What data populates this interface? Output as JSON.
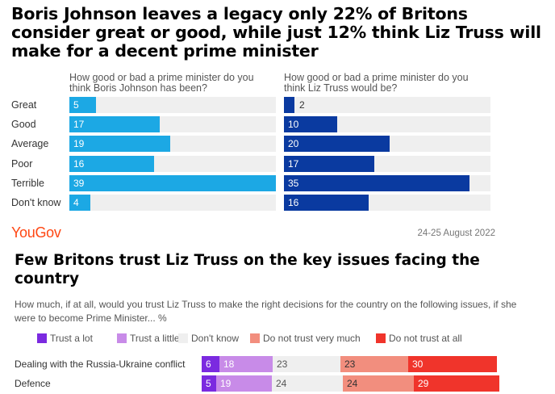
{
  "chart1": {
    "title": "Boris Johnson leaves a legacy only 22% of Britons consider great or good, while just 12% think Liz Truss will make for a decent prime minister",
    "chart_data": [
      {
        "type": "bar",
        "orientation": "horizontal",
        "question": "How good or bad a prime minister do you think Boris Johnson has been?",
        "categories": [
          "Great",
          "Good",
          "Average",
          "Poor",
          "Terrible",
          "Don't know"
        ],
        "values": [
          5,
          17,
          19,
          16,
          39,
          4
        ],
        "color": "#1ca8e4"
      },
      {
        "type": "bar",
        "orientation": "horizontal",
        "question": "How good or bad a prime minister do you think Liz Truss would be?",
        "categories": [
          "Great",
          "Good",
          "Average",
          "Poor",
          "Terrible",
          "Don't know"
        ],
        "values": [
          2,
          10,
          20,
          17,
          35,
          16
        ],
        "color": "#0a3aa0"
      }
    ],
    "brand": "YouGov",
    "date": "24-25 August 2022"
  },
  "chart2": {
    "title": "Few Britons trust Liz Truss on the key issues facing the country",
    "question": "How much, if at all, would you trust Liz Truss to make the right decisions for the country on the following issues, if she were to become Prime Minister... %",
    "chart_data": {
      "type": "bar",
      "orientation": "horizontal",
      "stacked": true,
      "categories": [
        "Dealing with the Russia-Ukraine conflict",
        "Defence"
      ],
      "series": [
        {
          "name": "Trust a lot",
          "values": [
            6,
            5
          ],
          "color": "#7b2ae0"
        },
        {
          "name": "Trust a little",
          "values": [
            18,
            19
          ],
          "color": "#c88be8"
        },
        {
          "name": "Don't know",
          "values": [
            23,
            24
          ],
          "color": "#efefef"
        },
        {
          "name": "Do not trust very much",
          "values": [
            23,
            24
          ],
          "color": "#f28e7e"
        },
        {
          "name": "Do not trust at all",
          "values": [
            30,
            29
          ],
          "color": "#f0342b"
        }
      ]
    }
  }
}
